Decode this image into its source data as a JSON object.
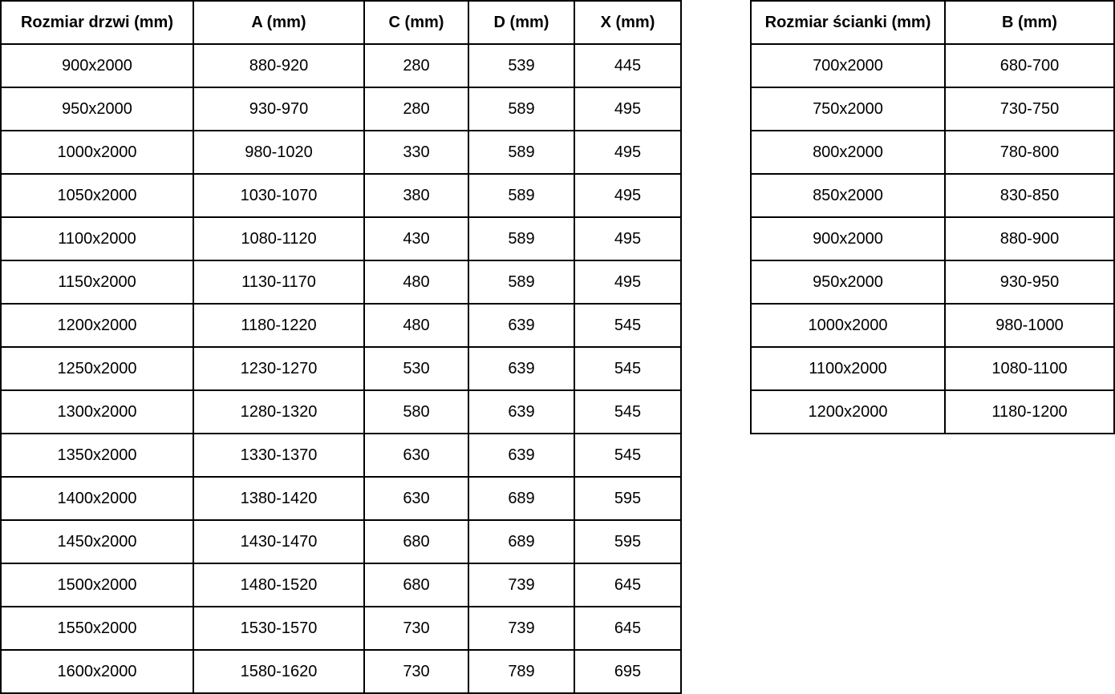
{
  "colors": {
    "background": "#ffffff",
    "border": "#000000",
    "text": "#000000"
  },
  "door_table": {
    "headers": [
      "Rozmiar drzwi (mm)",
      "A (mm)",
      "C (mm)",
      "D (mm)",
      "X (mm)"
    ],
    "rows": [
      [
        "900x2000",
        "880-920",
        "280",
        "539",
        "445"
      ],
      [
        "950x2000",
        "930-970",
        "280",
        "589",
        "495"
      ],
      [
        "1000x2000",
        "980-1020",
        "330",
        "589",
        "495"
      ],
      [
        "1050x2000",
        "1030-1070",
        "380",
        "589",
        "495"
      ],
      [
        "1100x2000",
        "1080-1120",
        "430",
        "589",
        "495"
      ],
      [
        "1150x2000",
        "1130-1170",
        "480",
        "589",
        "495"
      ],
      [
        "1200x2000",
        "1180-1220",
        "480",
        "639",
        "545"
      ],
      [
        "1250x2000",
        "1230-1270",
        "530",
        "639",
        "545"
      ],
      [
        "1300x2000",
        "1280-1320",
        "580",
        "639",
        "545"
      ],
      [
        "1350x2000",
        "1330-1370",
        "630",
        "639",
        "545"
      ],
      [
        "1400x2000",
        "1380-1420",
        "630",
        "689",
        "595"
      ],
      [
        "1450x2000",
        "1430-1470",
        "680",
        "689",
        "595"
      ],
      [
        "1500x2000",
        "1480-1520",
        "680",
        "739",
        "645"
      ],
      [
        "1550x2000",
        "1530-1570",
        "730",
        "739",
        "645"
      ],
      [
        "1600x2000",
        "1580-1620",
        "730",
        "789",
        "695"
      ]
    ]
  },
  "wall_table": {
    "headers": [
      "Rozmiar ścianki (mm)",
      "B (mm)"
    ],
    "rows": [
      [
        "700x2000",
        "680-700"
      ],
      [
        "750x2000",
        "730-750"
      ],
      [
        "800x2000",
        "780-800"
      ],
      [
        "850x2000",
        "830-850"
      ],
      [
        "900x2000",
        "880-900"
      ],
      [
        "950x2000",
        "930-950"
      ],
      [
        "1000x2000",
        "980-1000"
      ],
      [
        "1100x2000",
        "1080-1100"
      ],
      [
        "1200x2000",
        "1180-1200"
      ]
    ]
  }
}
